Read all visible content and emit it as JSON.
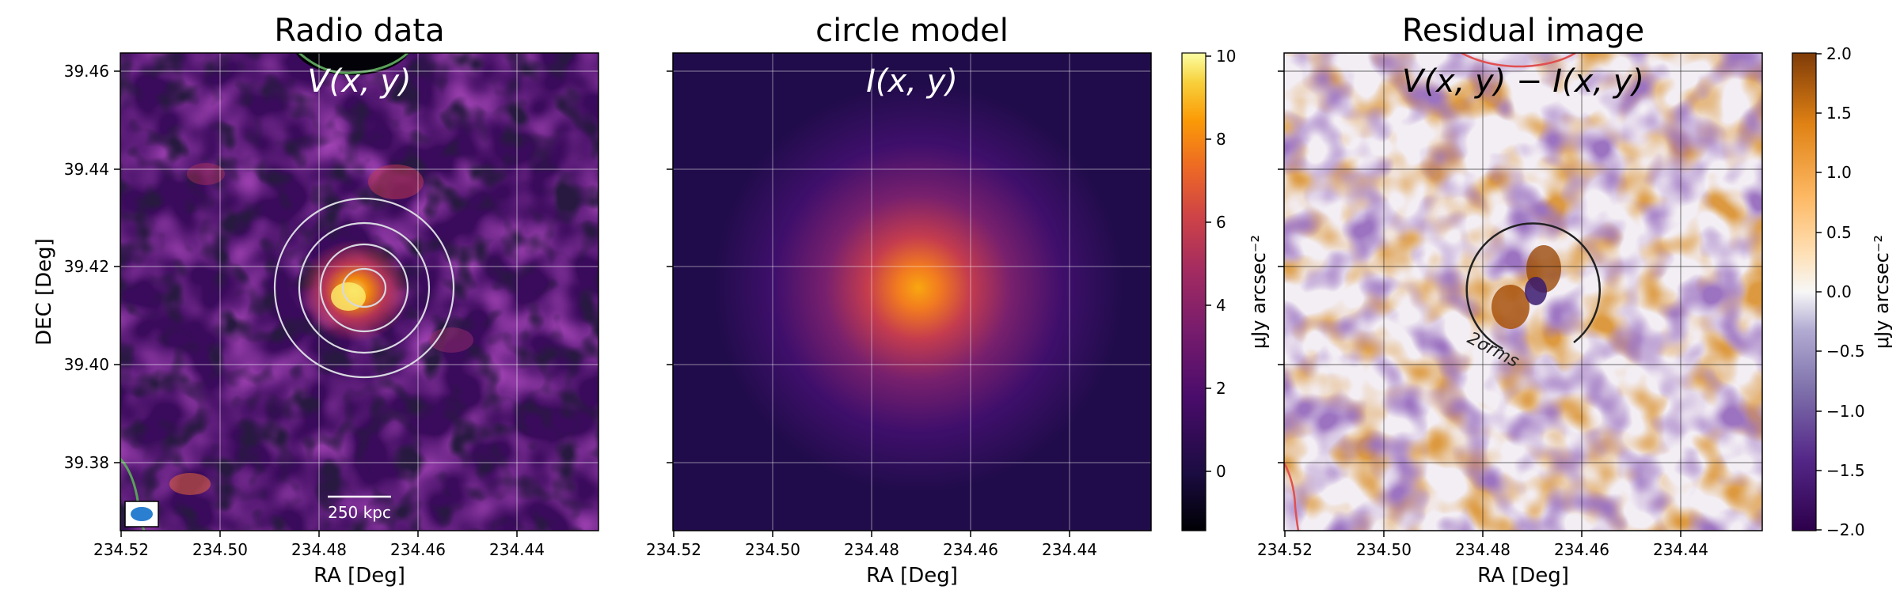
{
  "panels": [
    {
      "title": "Radio data",
      "overlay_label": "V(x, y)",
      "xlabel": "RA [Deg]",
      "ylabel": "DEC [Deg]",
      "scale_bar_label": "250 kpc"
    },
    {
      "title": "circle model",
      "overlay_label": "I(x, y)",
      "xlabel": "RA [Deg]"
    },
    {
      "title": "Residual image",
      "overlay_label": "V(x, y) − I(x, y)",
      "xlabel": "RA [Deg]",
      "contour_label": "2σrms"
    }
  ],
  "colorbars": [
    {
      "label": "μJy arcsec⁻²",
      "ticks": [
        "10",
        "8",
        "6",
        "4",
        "2",
        "0"
      ],
      "cmap": "inferno",
      "range": [
        -1.5,
        10.2
      ]
    },
    {
      "label": "μJy arcsec⁻²",
      "ticks": [
        "2.0",
        "1.5",
        "1.0",
        "0.5",
        "0.0",
        "−0.5",
        "−1.0",
        "−1.5",
        "−2.0"
      ],
      "cmap": "PuOr_r",
      "range": [
        -2.0,
        2.0
      ]
    }
  ],
  "x_ticks": [
    "234.52",
    "234.50",
    "234.48",
    "234.46",
    "234.44"
  ],
  "y_ticks": [
    "39.46",
    "39.44",
    "39.42",
    "39.40",
    "39.38"
  ],
  "colors": {
    "inferno_dark": "#1b0c41",
    "inferno_mid": "#bc3754",
    "inferno_hot": "#f98e09",
    "residual_orange": "#b35806",
    "residual_purple": "#542788",
    "contour_green": "#5aa05a",
    "contour_red": "#e05050"
  }
}
